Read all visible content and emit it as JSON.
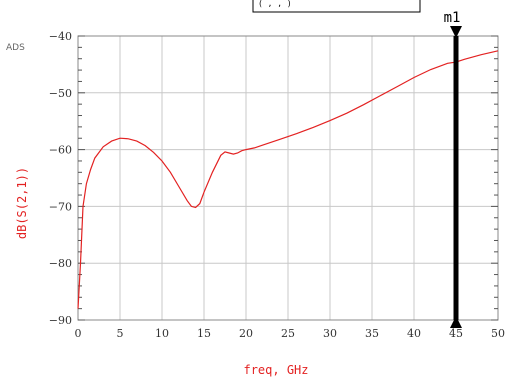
{
  "ads_label": "ADS",
  "top_box_text": "( , , )",
  "chart_data": {
    "type": "line",
    "xlabel": "freq, GHz",
    "ylabel": "dB(S(2,1))",
    "xlim": [
      0,
      50
    ],
    "ylim": [
      -90,
      -40
    ],
    "x_ticks": [
      "0",
      "5",
      "10",
      "15",
      "20",
      "25",
      "30",
      "35",
      "40",
      "45",
      "50"
    ],
    "y_ticks": [
      "-40",
      "-50",
      "-60",
      "-70",
      "-80",
      "-90"
    ],
    "grid": true,
    "series": [
      {
        "color": "#e32222",
        "x": [
          0.0,
          0.3,
          0.6,
          1.0,
          1.5,
          2.0,
          3.0,
          4.0,
          5.0,
          6.0,
          7.0,
          8.0,
          9.0,
          10.0,
          11.0,
          12.0,
          13.0,
          13.5,
          14.0,
          14.5,
          15.0,
          16.0,
          17.0,
          17.5,
          18.0,
          18.5,
          19.0,
          19.5,
          20.0,
          21.0,
          22.0,
          24.0,
          26.0,
          28.0,
          30.0,
          32.0,
          34.0,
          36.0,
          38.0,
          40.0,
          42.0,
          44.0,
          45.0,
          46.0,
          48.0,
          50.0
        ],
        "y": [
          -88.0,
          -80.0,
          -70.0,
          -66.0,
          -63.5,
          -61.5,
          -59.5,
          -58.5,
          -58.0,
          -58.1,
          -58.5,
          -59.3,
          -60.5,
          -62.0,
          -64.0,
          -66.5,
          -69.0,
          -70.0,
          -70.2,
          -69.5,
          -67.5,
          -64.0,
          -61.0,
          -60.4,
          -60.6,
          -60.8,
          -60.6,
          -60.2,
          -60.0,
          -59.7,
          -59.2,
          -58.2,
          -57.2,
          -56.1,
          -54.9,
          -53.6,
          -52.1,
          -50.5,
          -48.9,
          -47.3,
          -45.9,
          -44.8,
          -44.6,
          -44.1,
          -43.3,
          -42.6
        ]
      }
    ],
    "marker": {
      "name": "m1",
      "x": 45
    }
  }
}
